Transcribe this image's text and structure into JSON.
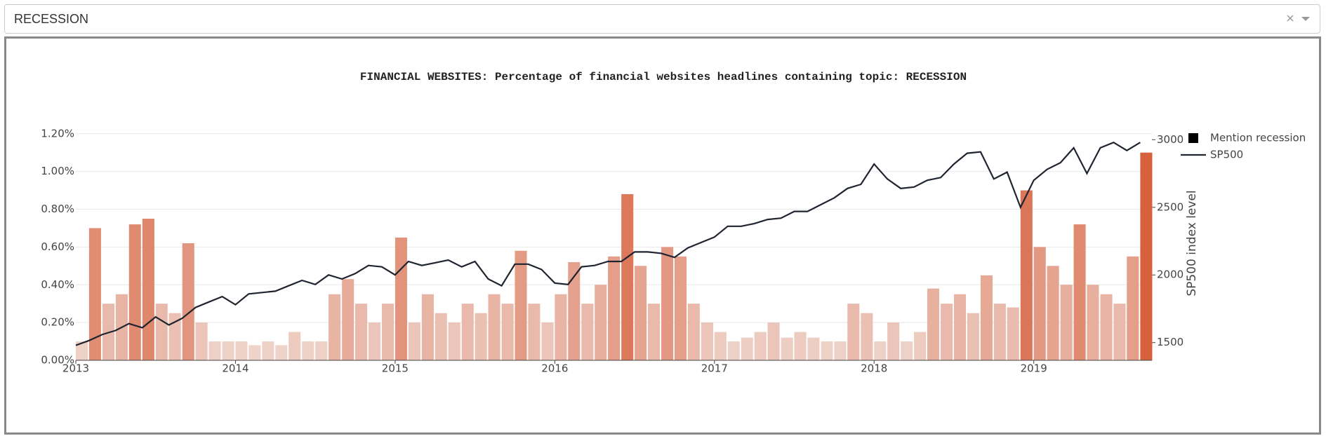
{
  "dropdown": {
    "value": "RECESSION"
  },
  "chart_data": {
    "type": "bar",
    "title": "FINANCIAL WEBSITES: Percentage of financial websites headlines containing topic: RECESSION",
    "y2_label": "SP500 index level",
    "x": [
      2013,
      2013.083,
      2013.167,
      2013.25,
      2013.333,
      2013.417,
      2013.5,
      2013.583,
      2013.667,
      2013.75,
      2013.833,
      2013.917,
      2014,
      2014.083,
      2014.167,
      2014.25,
      2014.333,
      2014.417,
      2014.5,
      2014.583,
      2014.667,
      2014.75,
      2014.833,
      2014.917,
      2015,
      2015.083,
      2015.167,
      2015.25,
      2015.333,
      2015.417,
      2015.5,
      2015.583,
      2015.667,
      2015.75,
      2015.833,
      2015.917,
      2016,
      2016.083,
      2016.167,
      2016.25,
      2016.333,
      2016.417,
      2016.5,
      2016.583,
      2016.667,
      2016.75,
      2016.833,
      2016.917,
      2017,
      2017.083,
      2017.167,
      2017.25,
      2017.333,
      2017.417,
      2017.5,
      2017.583,
      2017.667,
      2017.75,
      2017.833,
      2017.917,
      2018,
      2018.083,
      2018.167,
      2018.25,
      2018.333,
      2018.417,
      2018.5,
      2018.583,
      2018.667,
      2018.75,
      2018.833,
      2018.917,
      2019,
      2019.083,
      2019.167,
      2019.25,
      2019.333,
      2019.417,
      2019.5,
      2019.583,
      2019.667
    ],
    "xlim": [
      2013,
      2019.74
    ],
    "xticks": [
      2013,
      2014,
      2015,
      2016,
      2017,
      2018,
      2019
    ],
    "ylim": [
      0,
      1.24
    ],
    "yticks": [
      {
        "value": 0,
        "label": "0.00%"
      },
      {
        "value": 0.2,
        "label": "0.20%"
      },
      {
        "value": 0.4,
        "label": "0.40%"
      },
      {
        "value": 0.6,
        "label": "0.60%"
      },
      {
        "value": 0.8,
        "label": "0.80%"
      },
      {
        "value": 1.0,
        "label": "1.00%"
      },
      {
        "value": 1.2,
        "label": "1.20%"
      }
    ],
    "y2lim": [
      1369,
      3100
    ],
    "y2ticks": [
      1500,
      2000,
      2500,
      3000
    ],
    "grid": true,
    "legend": "right-top",
    "series": [
      {
        "name": "Mention recession",
        "color": "#000000",
        "colorscale": [
          "#f0dcd4",
          "#d4502a"
        ],
        "values": [
          0.1,
          0.7,
          0.3,
          0.35,
          0.72,
          0.75,
          0.3,
          0.25,
          0.62,
          0.2,
          0.1,
          0.1,
          0.1,
          0.08,
          0.1,
          0.08,
          0.15,
          0.1,
          0.1,
          0.35,
          0.43,
          0.3,
          0.2,
          0.3,
          0.65,
          0.2,
          0.35,
          0.25,
          0.2,
          0.3,
          0.25,
          0.35,
          0.3,
          0.58,
          0.3,
          0.2,
          0.35,
          0.52,
          0.3,
          0.4,
          0.55,
          0.88,
          0.5,
          0.3,
          0.6,
          0.55,
          0.3,
          0.2,
          0.15,
          0.1,
          0.12,
          0.15,
          0.2,
          0.12,
          0.15,
          0.12,
          0.1,
          0.1,
          0.3,
          0.25,
          0.1,
          0.2,
          0.1,
          0.15,
          0.38,
          0.3,
          0.35,
          0.25,
          0.45,
          0.3,
          0.28,
          0.9,
          0.6,
          0.5,
          0.4,
          0.72,
          0.4,
          0.35,
          0.3,
          0.55,
          1.1
        ]
      },
      {
        "name": "SP500",
        "color": "#1f2430",
        "axis": "y2",
        "values": [
          1480,
          1515,
          1560,
          1590,
          1640,
          1610,
          1690,
          1630,
          1680,
          1760,
          1800,
          1840,
          1780,
          1860,
          1870,
          1880,
          1920,
          1960,
          1930,
          2000,
          1970,
          2010,
          2070,
          2060,
          2000,
          2100,
          2070,
          2090,
          2110,
          2060,
          2100,
          1970,
          1920,
          2080,
          2080,
          2040,
          1940,
          1930,
          2060,
          2070,
          2100,
          2100,
          2170,
          2170,
          2160,
          2130,
          2200,
          2240,
          2280,
          2360,
          2360,
          2380,
          2410,
          2420,
          2470,
          2470,
          2520,
          2570,
          2640,
          2670,
          2820,
          2710,
          2640,
          2650,
          2700,
          2720,
          2820,
          2900,
          2910,
          2710,
          2760,
          2500,
          2700,
          2780,
          2830,
          2940,
          2750,
          2940,
          2980,
          2920,
          2980
        ]
      }
    ]
  }
}
